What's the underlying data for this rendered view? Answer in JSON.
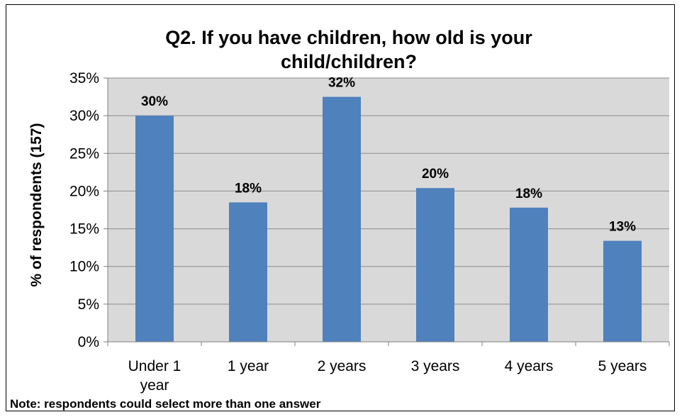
{
  "chart_data": {
    "type": "bar",
    "title_lines": [
      "Q2. If you have children, how old is your",
      "child/children?"
    ],
    "ylabel": "% of respondents (157)",
    "xlabel": "",
    "categories": [
      [
        "Under 1",
        "year"
      ],
      [
        "1 year"
      ],
      [
        "2 years"
      ],
      [
        "3 years"
      ],
      [
        "4 years"
      ],
      [
        "5 years"
      ]
    ],
    "values": [
      30,
      18.5,
      32.5,
      20.4,
      17.8,
      13.4
    ],
    "data_labels": [
      "30%",
      "18%",
      "32%",
      "20%",
      "18%",
      "13%"
    ],
    "ylim": [
      0,
      35
    ],
    "yticks": [
      0,
      5,
      10,
      15,
      20,
      25,
      30,
      35
    ],
    "ytick_labels": [
      "0%",
      "5%",
      "10%",
      "15%",
      "20%",
      "25%",
      "30%",
      "35%"
    ],
    "grid": true,
    "legend": "none",
    "bar_color": "#4F81BD",
    "plot_bg": "#D9D9D9"
  },
  "note": "Note: respondents could select more than one answer"
}
